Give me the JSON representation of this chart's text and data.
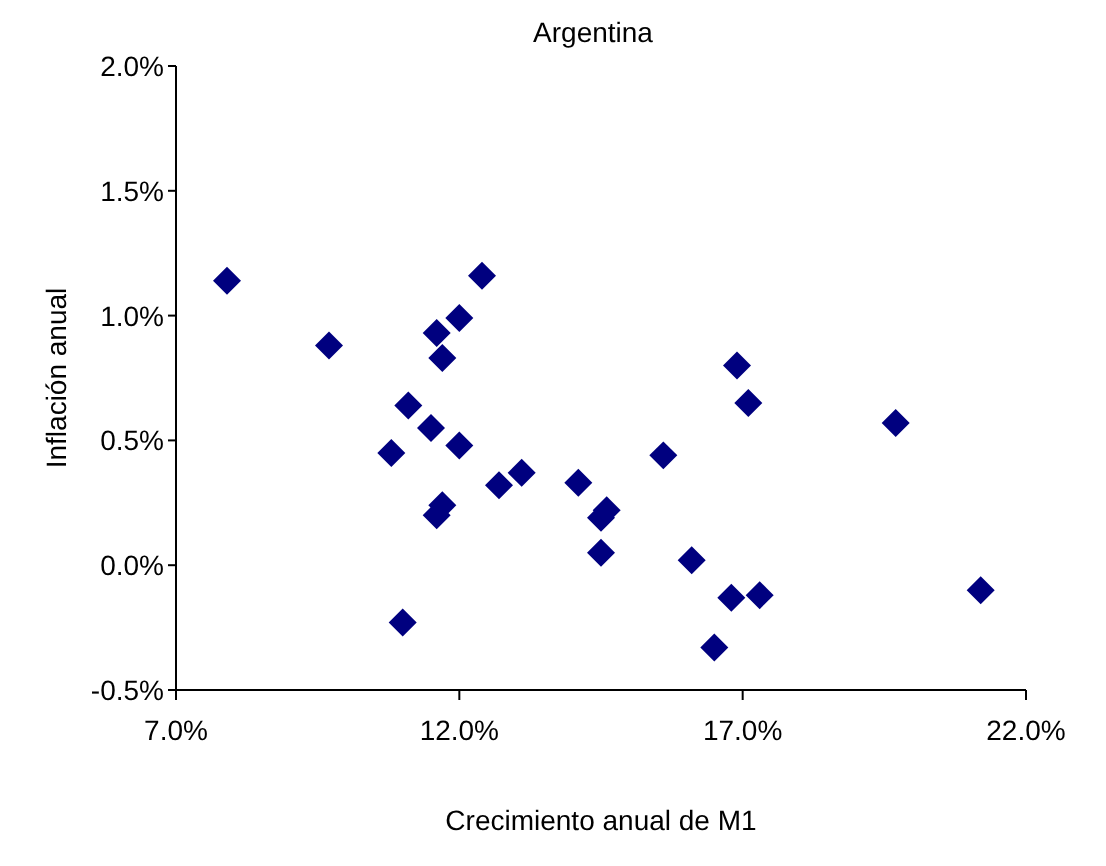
{
  "chart_data": {
    "type": "scatter",
    "title": "Argentina",
    "xlabel": "Crecimiento anual de M1",
    "ylabel": "Inflación anual",
    "marker": "diamond",
    "x": [
      7.9,
      9.7,
      11.1,
      10.8,
      11.5,
      11.6,
      11.7,
      12.0,
      12.4,
      12.0,
      11.7,
      11.6,
      11.0,
      12.7,
      13.1,
      14.1,
      14.5,
      14.6,
      14.5,
      15.6,
      16.1,
      16.5,
      16.8,
      17.3,
      16.9,
      17.1,
      19.7,
      21.2
    ],
    "series": [
      {
        "color": "#00007f",
        "values": [
          1.14,
          0.88,
          0.64,
          0.45,
          0.55,
          0.93,
          0.83,
          0.99,
          1.16,
          0.48,
          0.24,
          0.2,
          -0.23,
          0.32,
          0.37,
          0.33,
          0.19,
          0.22,
          0.05,
          0.44,
          0.02,
          -0.33,
          -0.13,
          -0.12,
          0.8,
          0.65,
          0.57,
          -0.1
        ]
      }
    ],
    "xlim": [
      7,
      22
    ],
    "xticks": [
      {
        "value": 7,
        "label": "7.0%"
      },
      {
        "value": 12,
        "label": "12.0%"
      },
      {
        "value": 17,
        "label": "17.0%"
      },
      {
        "value": 22,
        "label": "22.0%"
      }
    ],
    "ylim": [
      -0.5,
      2
    ],
    "yticks": [
      {
        "value": -0.5,
        "label": "-0.5%"
      },
      {
        "value": 0,
        "label": "0.0%"
      },
      {
        "value": 0.5,
        "label": "0.5%"
      },
      {
        "value": 1,
        "label": "1.0%"
      },
      {
        "value": 1.5,
        "label": "1.5%"
      },
      {
        "value": 2,
        "label": "2.0%"
      }
    ]
  }
}
